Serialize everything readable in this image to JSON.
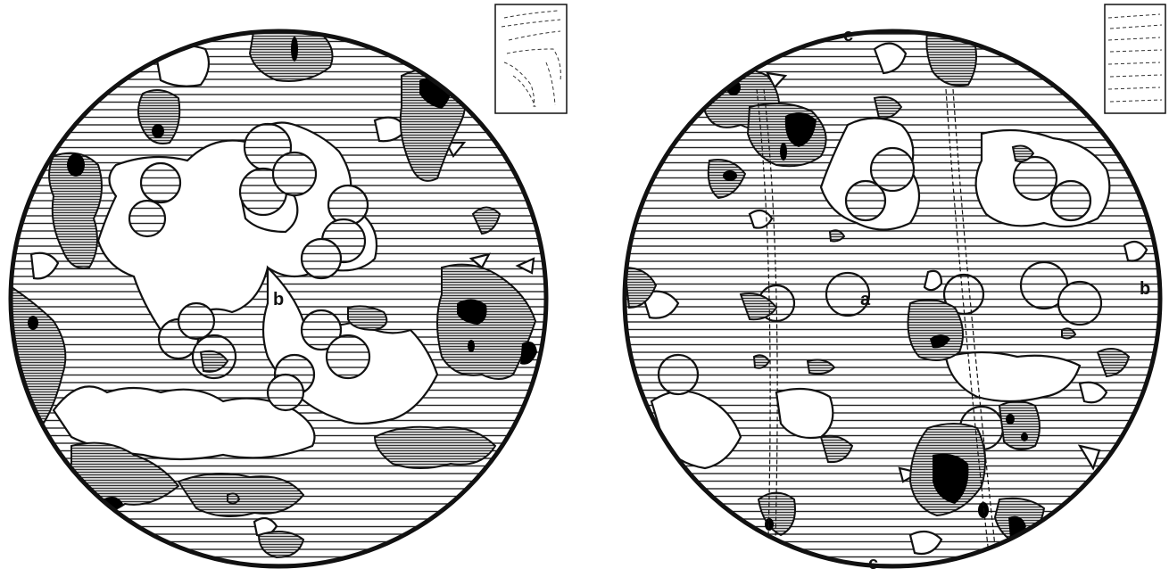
{
  "figure": {
    "left_diagram": {
      "labels": {
        "b": "b"
      }
    },
    "right_diagram": {
      "labels": {
        "a": "a",
        "b": "b",
        "c_top": "c",
        "c_bottom": "c"
      }
    }
  },
  "colors": {
    "outline": "#111111",
    "hatch_light": "#333333",
    "hatch_dense": "#555555",
    "solid": "#000000",
    "background": "#ffffff"
  }
}
